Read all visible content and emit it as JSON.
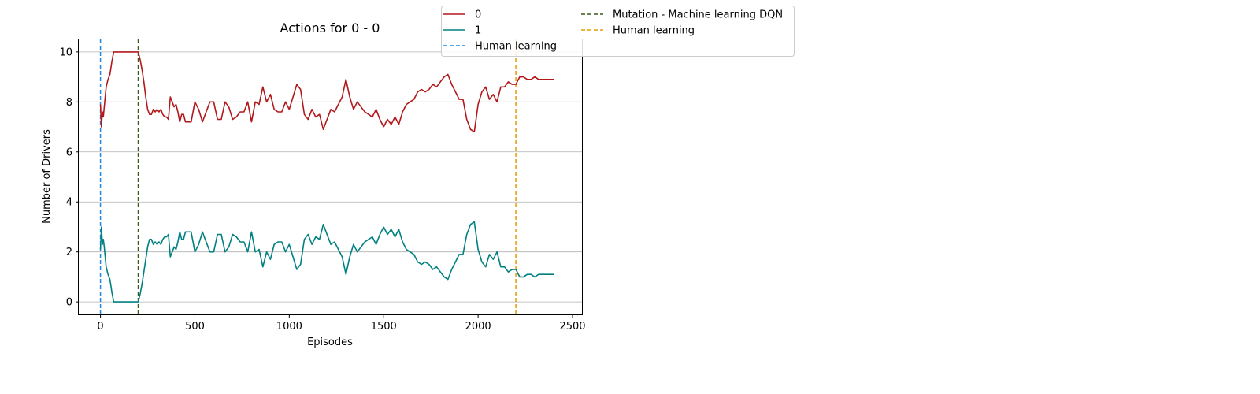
{
  "chart_data": {
    "type": "line",
    "title": "Actions for 0 - 0",
    "xlabel": "Episodes",
    "ylabel": "Number of Drivers",
    "xlim": [
      -115,
      2550
    ],
    "ylim": [
      -0.5,
      10.5
    ],
    "xticks": [
      0,
      500,
      1000,
      1500,
      2000,
      2500
    ],
    "xtick_labels": [
      "0",
      "500",
      "1000",
      "1500",
      "2000",
      "2500"
    ],
    "yticks": [
      0,
      2,
      4,
      6,
      8,
      10
    ],
    "ytick_labels": [
      "0",
      "2",
      "4",
      "6",
      "8",
      "10"
    ],
    "grid": "horizontal",
    "legend_position": "top-right outside plot",
    "series": [
      {
        "name": "0",
        "color": "#b2181b",
        "x": [
          0,
          5,
          10,
          15,
          20,
          30,
          40,
          50,
          60,
          70,
          80,
          100,
          120,
          140,
          160,
          180,
          200,
          210,
          220,
          230,
          240,
          250,
          260,
          270,
          280,
          290,
          300,
          310,
          320,
          330,
          340,
          350,
          360,
          370,
          380,
          390,
          400,
          410,
          420,
          430,
          440,
          450,
          460,
          470,
          480,
          500,
          520,
          540,
          560,
          580,
          600,
          620,
          640,
          660,
          680,
          700,
          720,
          740,
          760,
          780,
          800,
          820,
          840,
          860,
          880,
          900,
          920,
          940,
          960,
          980,
          1000,
          1020,
          1040,
          1060,
          1080,
          1100,
          1120,
          1140,
          1160,
          1180,
          1200,
          1220,
          1240,
          1260,
          1280,
          1300,
          1320,
          1340,
          1360,
          1380,
          1400,
          1420,
          1440,
          1460,
          1480,
          1500,
          1520,
          1540,
          1560,
          1580,
          1600,
          1620,
          1640,
          1660,
          1680,
          1700,
          1720,
          1740,
          1760,
          1780,
          1800,
          1820,
          1840,
          1860,
          1880,
          1900,
          1920,
          1940,
          1960,
          1980,
          2000,
          2020,
          2040,
          2060,
          2080,
          2100,
          2120,
          2140,
          2160,
          2180,
          2200,
          2220,
          2240,
          2260,
          2280,
          2300,
          2320,
          2340,
          2360,
          2380,
          2400
        ],
        "values": [
          7.9,
          7.0,
          7.6,
          7.4,
          7.8,
          8.6,
          8.9,
          9.1,
          9.6,
          10.0,
          10.0,
          10.0,
          10.0,
          10.0,
          10.0,
          10.0,
          10.0,
          9.7,
          9.3,
          8.8,
          8.2,
          7.7,
          7.5,
          7.5,
          7.7,
          7.6,
          7.7,
          7.6,
          7.7,
          7.5,
          7.4,
          7.4,
          7.3,
          8.2,
          8.0,
          7.8,
          7.9,
          7.6,
          7.2,
          7.5,
          7.5,
          7.2,
          7.2,
          7.2,
          7.2,
          8.0,
          7.7,
          7.2,
          7.6,
          8.0,
          8.0,
          7.3,
          7.3,
          8.0,
          7.8,
          7.3,
          7.4,
          7.6,
          7.6,
          8.0,
          7.2,
          8.0,
          7.9,
          8.6,
          8.0,
          8.3,
          7.7,
          7.6,
          7.6,
          8.0,
          7.7,
          8.2,
          8.7,
          8.5,
          7.5,
          7.3,
          7.7,
          7.4,
          7.5,
          6.9,
          7.3,
          7.7,
          7.6,
          7.9,
          8.2,
          8.9,
          8.2,
          7.7,
          8.0,
          7.8,
          7.6,
          7.5,
          7.4,
          7.7,
          7.3,
          7.0,
          7.3,
          7.1,
          7.4,
          7.1,
          7.6,
          7.9,
          8.0,
          8.1,
          8.4,
          8.5,
          8.4,
          8.5,
          8.7,
          8.6,
          8.8,
          9.0,
          9.1,
          8.7,
          8.4,
          8.1,
          8.1,
          7.3,
          6.9,
          6.8,
          7.9,
          8.4,
          8.6,
          8.1,
          8.3,
          8.0,
          8.6,
          8.6,
          8.8,
          8.7,
          8.7,
          9.0,
          9.0,
          8.9,
          8.9,
          9.0,
          8.9,
          8.9,
          8.9,
          8.9,
          8.9
        ]
      },
      {
        "name": "1",
        "color": "#008080",
        "x": [
          0,
          5,
          10,
          15,
          20,
          30,
          40,
          50,
          60,
          70,
          80,
          100,
          120,
          140,
          160,
          180,
          200,
          210,
          220,
          230,
          240,
          250,
          260,
          270,
          280,
          290,
          300,
          310,
          320,
          330,
          340,
          350,
          360,
          370,
          380,
          390,
          400,
          410,
          420,
          430,
          440,
          450,
          460,
          470,
          480,
          500,
          520,
          540,
          560,
          580,
          600,
          620,
          640,
          660,
          680,
          700,
          720,
          740,
          760,
          780,
          800,
          820,
          840,
          860,
          880,
          900,
          920,
          940,
          960,
          980,
          1000,
          1020,
          1040,
          1060,
          1080,
          1100,
          1120,
          1140,
          1160,
          1180,
          1200,
          1220,
          1240,
          1260,
          1280,
          1300,
          1320,
          1340,
          1360,
          1380,
          1400,
          1420,
          1440,
          1460,
          1480,
          1500,
          1520,
          1540,
          1560,
          1580,
          1600,
          1620,
          1640,
          1660,
          1680,
          1700,
          1720,
          1740,
          1760,
          1780,
          1800,
          1820,
          1840,
          1860,
          1880,
          1900,
          1920,
          1940,
          1960,
          1980,
          2000,
          2020,
          2040,
          2060,
          2080,
          2100,
          2120,
          2140,
          2160,
          2180,
          2200,
          2220,
          2240,
          2260,
          2280,
          2300,
          2320,
          2340,
          2360,
          2380,
          2400
        ],
        "values": [
          2.1,
          3.0,
          2.3,
          2.5,
          2.2,
          1.4,
          1.1,
          0.9,
          0.4,
          0.0,
          0.0,
          0.0,
          0.0,
          0.0,
          0.0,
          0.0,
          0.0,
          0.3,
          0.7,
          1.2,
          1.7,
          2.2,
          2.5,
          2.5,
          2.3,
          2.4,
          2.3,
          2.4,
          2.3,
          2.5,
          2.6,
          2.6,
          2.7,
          1.8,
          2.0,
          2.2,
          2.1,
          2.4,
          2.8,
          2.5,
          2.5,
          2.8,
          2.8,
          2.8,
          2.8,
          2.0,
          2.3,
          2.8,
          2.4,
          2.0,
          2.0,
          2.7,
          2.7,
          2.0,
          2.2,
          2.7,
          2.6,
          2.4,
          2.4,
          2.0,
          2.8,
          2.0,
          2.1,
          1.4,
          2.0,
          1.7,
          2.3,
          2.4,
          2.4,
          2.0,
          2.3,
          1.8,
          1.3,
          1.5,
          2.5,
          2.7,
          2.3,
          2.6,
          2.5,
          3.1,
          2.7,
          2.3,
          2.4,
          2.1,
          1.8,
          1.1,
          1.8,
          2.3,
          2.0,
          2.2,
          2.4,
          2.5,
          2.6,
          2.3,
          2.7,
          3.0,
          2.7,
          2.9,
          2.6,
          2.9,
          2.4,
          2.1,
          2.0,
          1.9,
          1.6,
          1.5,
          1.6,
          1.5,
          1.3,
          1.4,
          1.2,
          1.0,
          0.9,
          1.3,
          1.6,
          1.9,
          1.9,
          2.7,
          3.1,
          3.2,
          2.1,
          1.6,
          1.4,
          1.9,
          1.7,
          2.0,
          1.4,
          1.4,
          1.2,
          1.3,
          1.3,
          1.0,
          1.0,
          1.1,
          1.1,
          1.0,
          1.1,
          1.1,
          1.1,
          1.1,
          1.1
        ]
      }
    ],
    "vlines": [
      {
        "name": "Human learning",
        "x": 0,
        "color": "#1e88e5"
      },
      {
        "name": "Mutation - Machine learning DQN",
        "x": 200,
        "color": "#375a1e"
      },
      {
        "name": "Human learning",
        "x": 2200,
        "color": "#e69b00"
      }
    ]
  }
}
